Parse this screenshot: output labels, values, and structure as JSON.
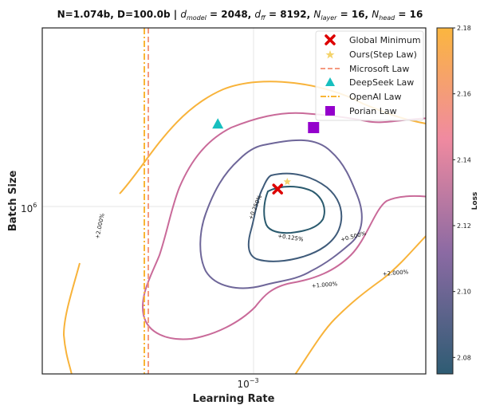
{
  "chart_data": {
    "type": "contour",
    "title": "N=1.074b, D=100.0b | d_model = 2048, d_ff = 8192, N_layer = 16, N_head = 16",
    "title_parts": {
      "prefix": "N=1.074b, D=100.0b | ",
      "dmodel_sym": "d",
      "dmodel_sub": "model",
      "dmodel_val": " = 2048, ",
      "dff_sym": "d",
      "dff_sub": "ff",
      "dff_val": " = 8192, ",
      "nlayer_sym": "N",
      "nlayer_sub": "layer",
      "nlayer_val": " = 16, ",
      "nhead_sym": "N",
      "nhead_sub": "head",
      "nhead_val": " = 16"
    },
    "xlabel": "Learning Rate",
    "ylabel": "Batch Size",
    "xscale": "log",
    "yscale": "log",
    "xlim": [
      0.00032,
      0.0025
    ],
    "ylim": [
      240000,
      3600000
    ],
    "x_ticks": [
      {
        "value": 0.001,
        "base": "10",
        "exp": "−3"
      }
    ],
    "y_ticks": [
      {
        "value": 1000000,
        "base": "10",
        "exp": "6"
      }
    ],
    "grid": true,
    "legend_position": "top-right",
    "legend": [
      {
        "label": "Global Minimum",
        "kind": "x-marker",
        "color": "#dd0000"
      },
      {
        "label": "Ours(Step Law)",
        "kind": "star",
        "color": "#f4d36a"
      },
      {
        "label": "Microsoft Law",
        "kind": "dashed-line",
        "color": "#f59a80"
      },
      {
        "label": "DeepSeek Law",
        "kind": "triangle",
        "color": "#17bfbf"
      },
      {
        "label": "OpenAI Law",
        "kind": "dashdot-line",
        "color": "#f9b535"
      },
      {
        "label": "Porian Law",
        "kind": "square",
        "color": "#9400cc"
      }
    ],
    "points": [
      {
        "name": "Global Minimum",
        "x": 0.00113,
        "y": 1020000
      },
      {
        "name": "Ours(Step Law)",
        "x": 0.00119,
        "y": 1080000
      },
      {
        "name": "DeepSeek Law",
        "x": 0.00082,
        "y": 1700000
      },
      {
        "name": "Porian Law",
        "x": 0.00137,
        "y": 1650000
      }
    ],
    "vertical_lines": [
      {
        "name": "Microsoft Law",
        "x": 0.000535,
        "color": "#f59a80",
        "style": "dashed"
      },
      {
        "name": "OpenAI Law",
        "x": 0.00052,
        "color": "#f9b535",
        "style": "dashdot"
      }
    ],
    "contours": [
      {
        "label": "+0.125%",
        "color": "#2a5a6e"
      },
      {
        "label": "+0.250%",
        "color": "#3f5b7a"
      },
      {
        "label": "+0.500%",
        "color": "#6e6699"
      },
      {
        "label": "+1.000%",
        "color": "#c96a99"
      },
      {
        "label": "+2.000%",
        "color": "#f8b33a"
      }
    ],
    "contour_labels": {
      "c125": "+0.125%",
      "c250": "+0.250%",
      "c500": "+0.500%",
      "c1000": "+1.000%",
      "c2000a": "+2.000%",
      "c2000b": "+2.000%"
    },
    "colorbar": {
      "label": "Loss",
      "min": 2.075,
      "max": 2.18,
      "ticks": [
        "2.08",
        "2.10",
        "2.12",
        "2.14",
        "2.16",
        "2.18"
      ],
      "tick_values": [
        2.08,
        2.1,
        2.12,
        2.14,
        2.16,
        2.18
      ],
      "colors": [
        "#2e5c73",
        "#8b6aa3",
        "#f08aa0",
        "#fbb63f"
      ]
    }
  }
}
